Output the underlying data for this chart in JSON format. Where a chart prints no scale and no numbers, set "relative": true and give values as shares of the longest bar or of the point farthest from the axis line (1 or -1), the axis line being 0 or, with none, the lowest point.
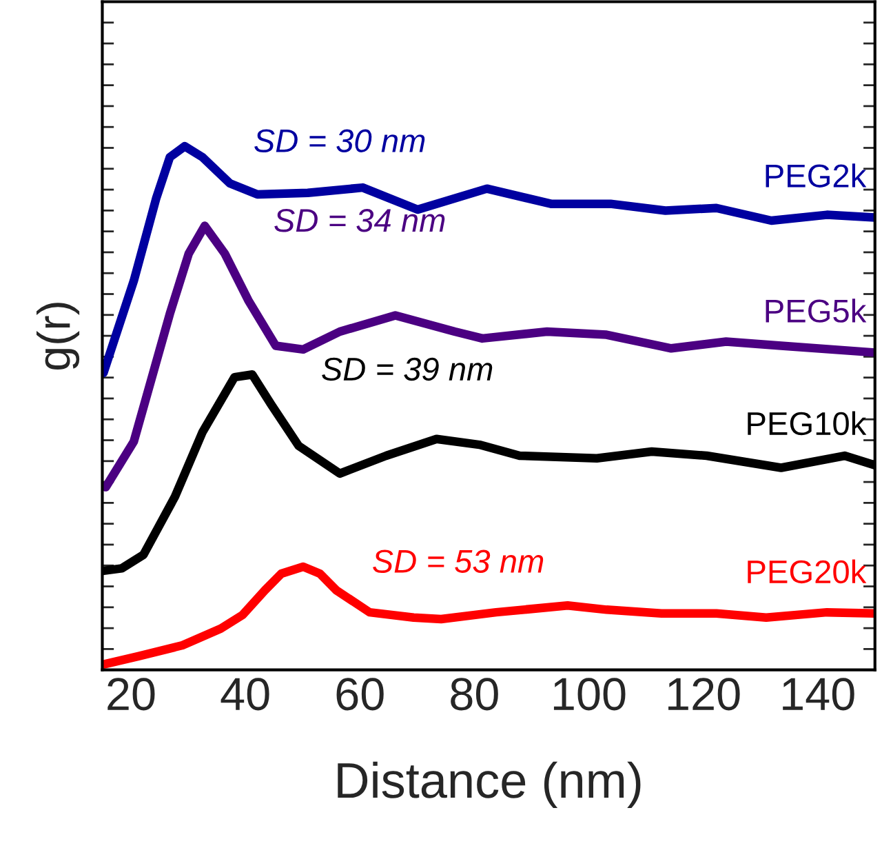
{
  "chart_data": {
    "type": "line",
    "relative": true,
    "xlabel": "Distance (nm)",
    "ylabel": "g(r)",
    "xlim": [
      15,
      150
    ],
    "xticks": [
      20,
      40,
      60,
      80,
      100,
      120,
      140
    ],
    "tick_labels": "x",
    "grid": false,
    "legend": false,
    "line_style": "solid",
    "marker": "none",
    "series": [
      {
        "name": "PEG2k",
        "color": "#0000a0",
        "x": [
          15.2,
          20.5,
          24.4,
          26.8,
          29.4,
          32.5,
          37.3,
          42.1,
          50.9,
          60.5,
          70.1,
          82.2,
          93.4,
          103.8,
          113.4,
          122.3,
          131.9,
          141.6,
          150
        ],
        "values": [
          0.567,
          0.743,
          0.9,
          0.979,
          1.0,
          0.979,
          0.929,
          0.908,
          0.911,
          0.921,
          0.879,
          0.919,
          0.89,
          0.89,
          0.877,
          0.882,
          0.858,
          0.869,
          0.864
        ]
      },
      {
        "name": "PEG5k",
        "color": "#4b0082",
        "x": [
          15.6,
          20.5,
          26.8,
          30.1,
          32.9,
          36.4,
          40.5,
          45.3,
          50.1,
          56.5,
          66.2,
          76.6,
          81.4,
          92.7,
          103.1,
          114.4,
          124,
          133.6,
          150
        ],
        "values": [
          0.349,
          0.436,
          0.68,
          0.795,
          0.848,
          0.795,
          0.706,
          0.619,
          0.612,
          0.646,
          0.677,
          0.646,
          0.633,
          0.646,
          0.64,
          0.614,
          0.627,
          0.619,
          0.606
        ]
      },
      {
        "name": "PEG10k",
        "color": "#000000",
        "x": [
          15,
          18.4,
          22.2,
          27.7,
          32.5,
          38.1,
          41.2,
          44.5,
          49.3,
          56.5,
          64.6,
          73.4,
          80.9,
          87.9,
          101.4,
          111,
          120.6,
          133.6,
          144.7,
          150
        ],
        "values": [
          0.189,
          0.194,
          0.22,
          0.331,
          0.454,
          0.559,
          0.564,
          0.507,
          0.428,
          0.375,
          0.409,
          0.441,
          0.43,
          0.409,
          0.404,
          0.417,
          0.409,
          0.386,
          0.409,
          0.391
        ]
      },
      {
        "name": "PEG20k",
        "color": "#ff0000",
        "x": [
          15,
          21.3,
          29,
          35.7,
          39.5,
          43.4,
          46.3,
          50.1,
          53,
          55.9,
          61.7,
          69.4,
          74.2,
          83.8,
          96.3,
          103.1,
          112.7,
          122.3,
          131,
          141.6,
          150
        ],
        "values": [
          0.01,
          0.026,
          0.047,
          0.079,
          0.105,
          0.152,
          0.184,
          0.197,
          0.184,
          0.152,
          0.11,
          0.1,
          0.097,
          0.11,
          0.123,
          0.115,
          0.108,
          0.108,
          0.1,
          0.11,
          0.108
        ]
      }
    ],
    "annotations": [
      {
        "text": "SD = 30 nm",
        "x": 29.4,
        "y": 1.0
      },
      {
        "text": "SD = 34 nm",
        "x": 32.9,
        "y": 0.848
      },
      {
        "text": "SD = 39 nm",
        "x": 41.2,
        "y": 0.564
      },
      {
        "text": "SD = 53 nm",
        "x": 50.1,
        "y": 0.197
      }
    ]
  }
}
